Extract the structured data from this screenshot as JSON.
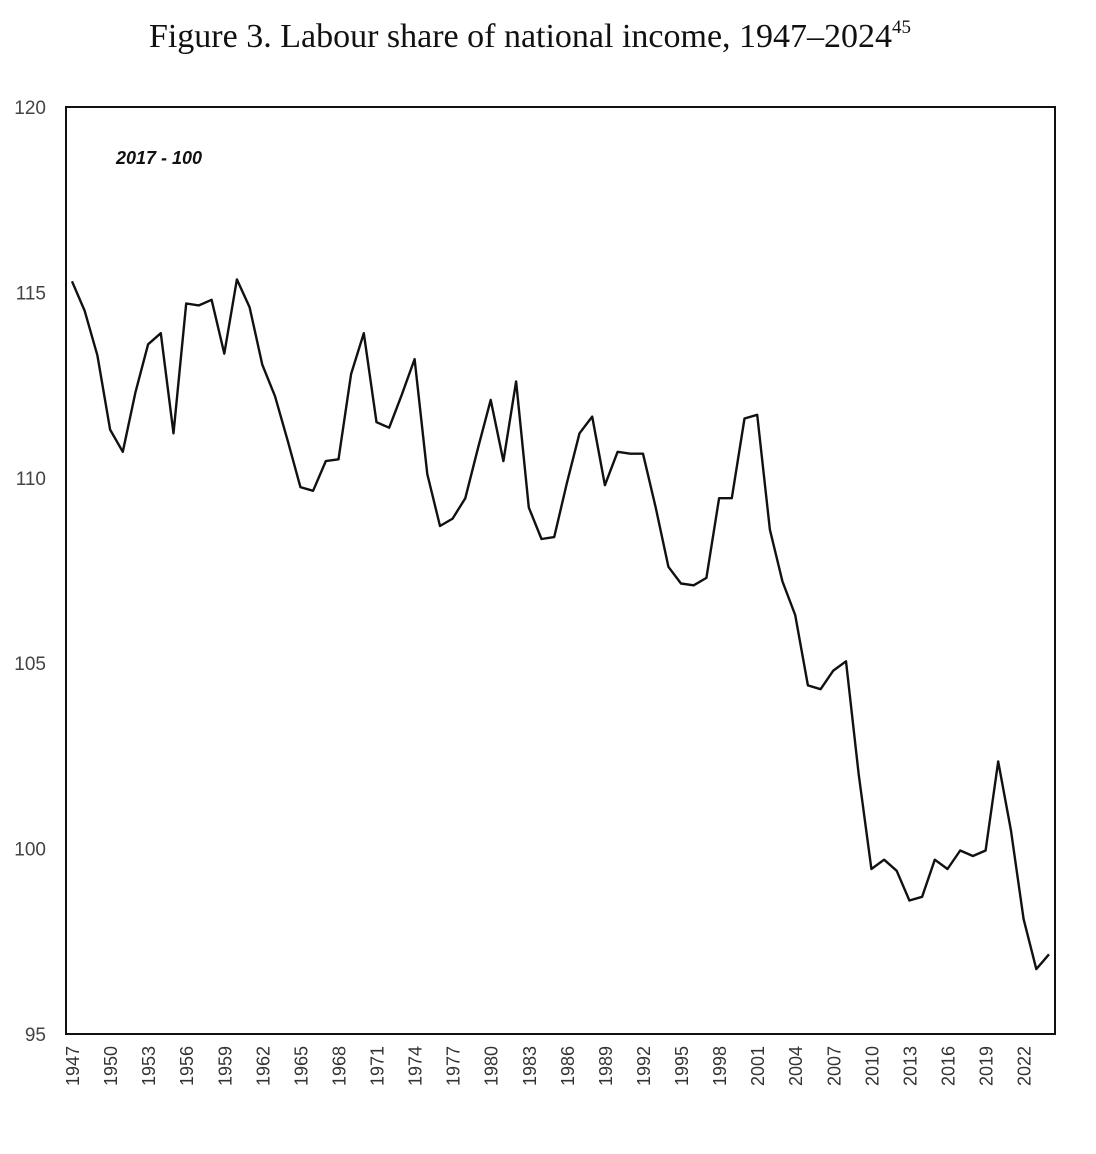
{
  "title": "Figure 3. Labour share of national income, 1947–2024",
  "title_footnote": "45",
  "chart_data": {
    "type": "line",
    "title": "Figure 3. Labour share of national income, 1947–2024",
    "annotation": "2017 - 100",
    "xlabel": "",
    "ylabel": "",
    "ylim": [
      95,
      120
    ],
    "yticks": [
      95,
      100,
      105,
      110,
      115,
      120
    ],
    "xticks": [
      1947,
      1950,
      1953,
      1956,
      1959,
      1962,
      1965,
      1968,
      1971,
      1974,
      1977,
      1980,
      1983,
      1986,
      1989,
      1992,
      1995,
      1998,
      2001,
      2004,
      2007,
      2010,
      2013,
      2016,
      2019,
      2022
    ],
    "grid": false,
    "legend": "none",
    "x": [
      1947,
      1948,
      1949,
      1950,
      1951,
      1952,
      1953,
      1954,
      1955,
      1956,
      1957,
      1958,
      1959,
      1960,
      1961,
      1962,
      1963,
      1964,
      1965,
      1966,
      1967,
      1968,
      1969,
      1970,
      1971,
      1972,
      1973,
      1974,
      1975,
      1976,
      1977,
      1978,
      1979,
      1980,
      1981,
      1982,
      1983,
      1984,
      1985,
      1986,
      1987,
      1988,
      1989,
      1990,
      1991,
      1992,
      1993,
      1994,
      1995,
      1996,
      1997,
      1998,
      1999,
      2000,
      2001,
      2002,
      2003,
      2004,
      2005,
      2006,
      2007,
      2008,
      2009,
      2010,
      2011,
      2012,
      2013,
      2014,
      2015,
      2016,
      2017,
      2018,
      2019,
      2020,
      2021,
      2022,
      2023,
      2024
    ],
    "series": [
      {
        "values": [
          115.3,
          114.5,
          113.3,
          111.3,
          110.7,
          112.3,
          113.6,
          113.9,
          111.2,
          114.7,
          114.65,
          114.8,
          113.35,
          115.35,
          114.6,
          113.05,
          112.2,
          111.0,
          109.75,
          109.65,
          110.45,
          110.5,
          112.8,
          113.9,
          111.5,
          111.35,
          112.25,
          113.2,
          110.1,
          108.7,
          108.9,
          109.45,
          110.8,
          112.1,
          110.45,
          112.6,
          109.2,
          108.35,
          108.4,
          109.85,
          111.2,
          111.65,
          109.8,
          110.7,
          110.65,
          110.65,
          109.2,
          107.6,
          107.15,
          107.1,
          107.3,
          109.45,
          109.45,
          111.6,
          111.7,
          108.6,
          107.2,
          106.3,
          104.4,
          104.3,
          104.8,
          105.05,
          102.0,
          99.45,
          99.7,
          99.4,
          98.6,
          98.7,
          99.7,
          99.45,
          99.95,
          99.8,
          99.95,
          102.35,
          100.5,
          98.1,
          96.75,
          97.15
        ]
      }
    ]
  }
}
